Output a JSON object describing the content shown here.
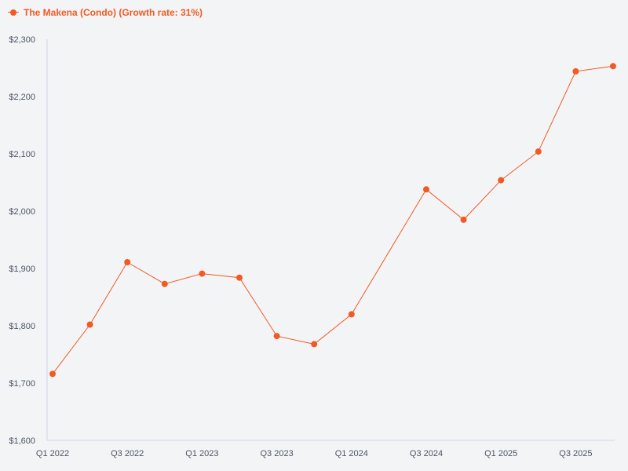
{
  "colors": {
    "series": "#f15a24",
    "axis": "#d1d5e6",
    "tick_text": "#4b5563",
    "background": "#f3f4f6"
  },
  "legend": {
    "label": "The Makena (Condo) (Growth rate: 31%)",
    "placement": "top-left"
  },
  "chart_data": {
    "type": "line",
    "title": "",
    "xlabel": "",
    "ylabel": "",
    "categories": [
      "Q1 2022",
      "Q2 2022",
      "Q3 2022",
      "Q4 2022",
      "Q1 2023",
      "Q2 2023",
      "Q3 2023",
      "Q4 2023",
      "Q1 2024",
      "Q2 2024",
      "Q3 2024",
      "Q4 2024",
      "Q1 2025",
      "Q2 2025",
      "Q3 2025",
      "Q4 2025"
    ],
    "x_tick_labels": [
      "Q1 2022",
      "Q3 2022",
      "Q1 2023",
      "Q3 2023",
      "Q1 2024",
      "Q3 2024",
      "Q1 2025",
      "Q3 2025"
    ],
    "series": [
      {
        "name": "The Makena (Condo) (Growth rate: 31%)",
        "values": [
          1716,
          1802,
          1911,
          1873,
          1891,
          1884,
          1782,
          1768,
          1820,
          null,
          2038,
          1985,
          2054,
          2104,
          2244,
          2253
        ]
      }
    ],
    "ylim": [
      1600,
      2300
    ],
    "y_ticks": [
      1600,
      1700,
      1800,
      1900,
      2000,
      2100,
      2200,
      2300
    ],
    "y_tick_labels": [
      "$1,600",
      "$1,700",
      "$1,800",
      "$1,900",
      "$2,000",
      "$2,100",
      "$2,200",
      "$2,300"
    ],
    "grid": false,
    "legend_position": "top-left"
  }
}
